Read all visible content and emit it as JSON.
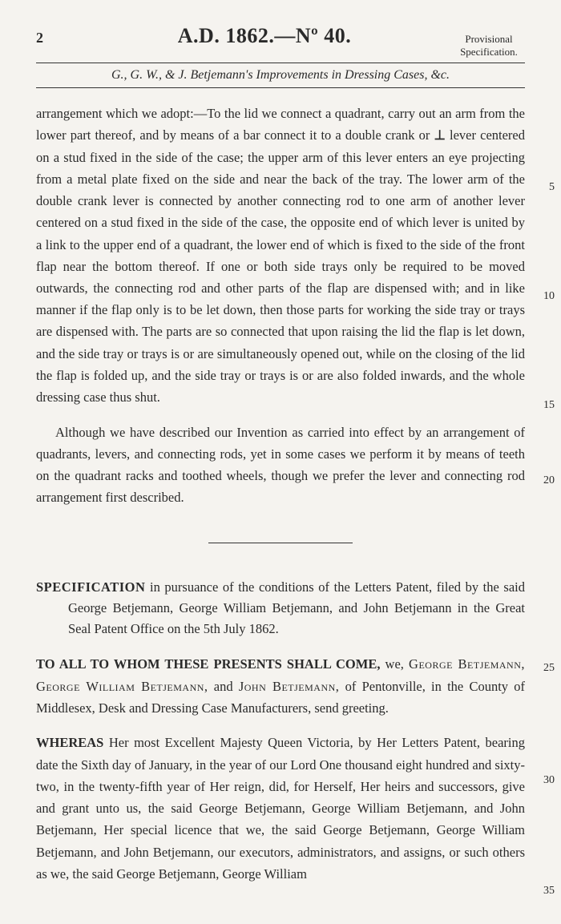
{
  "header": {
    "page_number": "2",
    "title": "A.D. 1862.—Nº 40.",
    "corner_line1": "Provisional",
    "corner_line2": "Specification."
  },
  "subtitle": "G., G. W., & J. Betjemann's Improvements in Dressing Cases, &c.",
  "body1_a": "arrangement which we adopt:—To the lid we connect a quadrant, carry out an arm from the lower part thereof, and by means of a bar connect it to a double crank or ",
  "body1_perp": "⊥",
  "body1_b": " lever centered on a stud fixed in the side of the case; the upper arm of this lever enters an eye projecting from a metal plate fixed on the side and near the back of the tray. The lower arm of the double crank lever is connected by another connecting rod to one arm of another lever centered on a stud fixed in the side of the case, the opposite end of which lever is united by a link to the upper end of a quadrant, the lower end of which is fixed to the side of the front flap near the bottom thereof. If one or both side trays only be required to be moved outwards, the connecting rod and other parts of the flap are dispensed with; and in like manner if the flap only is to be let down, then those parts for working the side tray or trays are dispensed with. The parts are so connected that upon raising the lid the flap is let down, and the side tray or trays is or are simultaneously opened out, while on the closing of the lid the flap is folded up, and the side tray or trays is or are also folded inwards, and the whole dressing case thus shut.",
  "body2": "Although we have described our Invention as carried into effect by an arrangement of quadrants, levers, and connecting rods, yet in some cases we perform it by means of teeth on the quadrant racks and toothed wheels, though we prefer the lever and connecting rod arrangement first described.",
  "spec": {
    "lead": "SPECIFICATION",
    "rest": " in pursuance of the conditions of the Letters Patent, filed by the said George Betjemann, George William Betjemann, and John Betjemann in the Great Seal Patent Office on the 5th July 1862."
  },
  "toall": {
    "lead": "TO ALL TO WHOM THESE PRESENTS SHALL COME,",
    "rest_a": " we, ",
    "names": "George Betjemann, George William Betjemann,",
    "rest_b": " and ",
    "name2": "John Betjemann,",
    "rest_c": " of Pentonville, in the County of Middlesex, Desk and Dressing Case Manufacturers, send greeting."
  },
  "whereas": {
    "lead": "WHEREAS",
    "rest": " Her most Excellent Majesty Queen Victoria, by Her Letters Patent, bearing date the Sixth day of January, in the year of our Lord One thousand eight hundred and sixty-two, in the twenty-fifth year of Her reign, did, for Herself, Her heirs and successors, give and grant unto us, the said George Betjemann, George William Betjemann, and John Betjemann, Her special licence that we, the said George Betjemann, George William Betjemann, and John Betjemann, our executors, administrators, and assigns, or such others as we, the said George Betjemann, George William"
  },
  "margin_numbers": {
    "m5": "5",
    "m10": "10",
    "m15": "15",
    "m20": "20",
    "m25": "25",
    "m30": "30",
    "m35": "35"
  },
  "margin_positions": {
    "m5": 226,
    "m10": 362,
    "m15": 498,
    "m20": 592,
    "m25": 826,
    "m30": 966,
    "m35": 1104
  }
}
